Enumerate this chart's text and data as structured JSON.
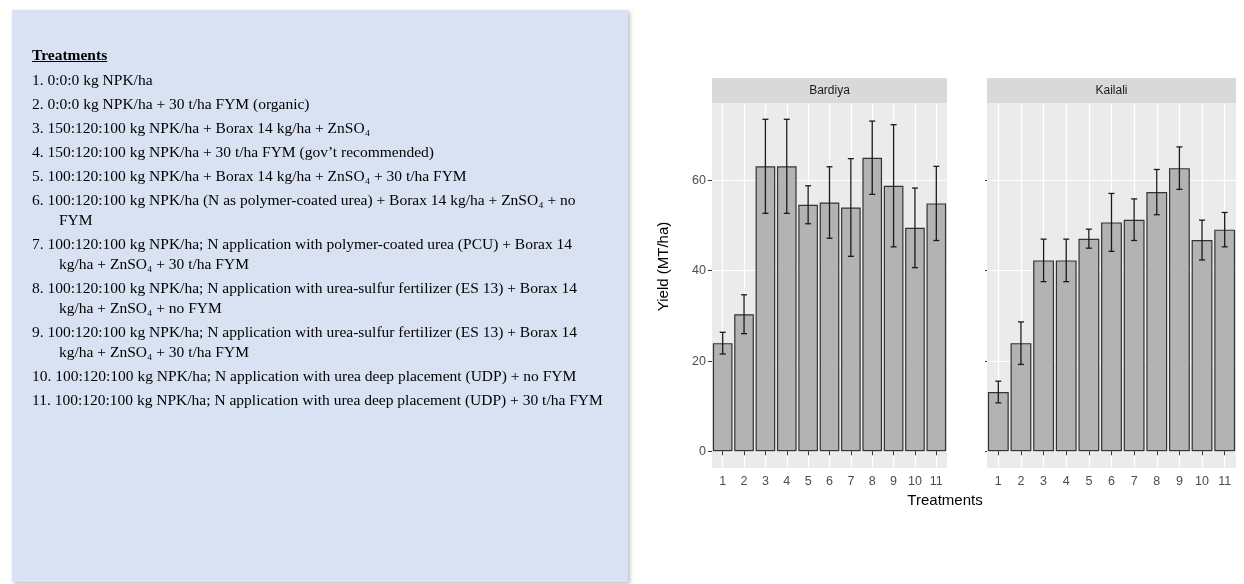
{
  "chart_data": [
    {
      "type": "other",
      "title": "Treatments",
      "annotations": [
        "1. 0:0:0 kg NPK/ha",
        "2. 0:0:0 kg NPK/ha + 30 t/ha FYM (organic)",
        "3. 150:120:100 kg NPK/ha + Borax 14 kg/ha + ZnSO₄",
        "4. 150:120:100 kg NPK/ha + 30 t/ha FYM (gov’t recommended)",
        "5. 100:120:100 kg NPK/ha + Borax 14 kg/ha + ZnSO₄ + 30 t/ha FYM",
        "6. 100:120:100 kg NPK/ha (N as polymer-coated urea) + Borax 14 kg/ha + ZnSO₄ + no FYM",
        "7. 100:120:100 kg NPK/ha; N application with polymer-coated urea (PCU) + Borax 14 kg/ha + ZnSO₄ + 30 t/ha FYM",
        "8. 100:120:100 kg NPK/ha; N application with urea-sulfur fertilizer (ES 13) + Borax 14 kg/ha + ZnSO₄ + no FYM",
        "9. 100:120:100 kg NPK/ha; N application with urea-sulfur fertilizer (ES 13) + Borax 14 kg/ha + ZnSO₄ + 30 t/ha FYM",
        "10. 100:120:100 kg NPK/ha; N application with urea deep placement (UDP) + no FYM",
        "11. 100:120:100 kg NPK/ha; N application with urea deep placement (UDP) + 30 t/ha FYM"
      ]
    },
    {
      "type": "bar",
      "title": "Bardiya",
      "ylabel": "Yield (MT/ha)",
      "categories": [
        "1",
        "2",
        "3",
        "4",
        "5",
        "6",
        "7",
        "8",
        "9",
        "10",
        "11"
      ],
      "values": [
        23.9,
        30.3,
        63.0,
        63.0,
        54.5,
        55.0,
        53.9,
        64.9,
        58.7,
        49.4,
        54.8
      ],
      "errors": [
        2.4,
        4.3,
        10.4,
        10.4,
        4.2,
        7.9,
        10.8,
        8.1,
        13.5,
        8.8,
        8.2
      ],
      "color": "#b3b3b3",
      "ylim": [
        -3.7,
        77
      ],
      "yticks": [
        0,
        20,
        40,
        60
      ],
      "grid": true
    },
    {
      "type": "bar",
      "title": "Kailali",
      "xlabel": "Treatments",
      "categories": [
        "1",
        "2",
        "3",
        "4",
        "5",
        "6",
        "7",
        "8",
        "9",
        "10",
        "11"
      ],
      "values": [
        13.1,
        23.9,
        42.2,
        42.2,
        47.0,
        50.6,
        51.2,
        57.3,
        62.6,
        46.7,
        49.0
      ],
      "errors": [
        2.4,
        4.7,
        4.7,
        4.7,
        2.1,
        6.4,
        4.6,
        5.0,
        4.7,
        4.4,
        3.8
      ],
      "color": "#b3b3b3",
      "ylim": [
        -3.7,
        77
      ],
      "yticks": [
        0,
        20,
        40,
        60
      ],
      "grid": true,
      "tick_labels": "x"
    }
  ]
}
